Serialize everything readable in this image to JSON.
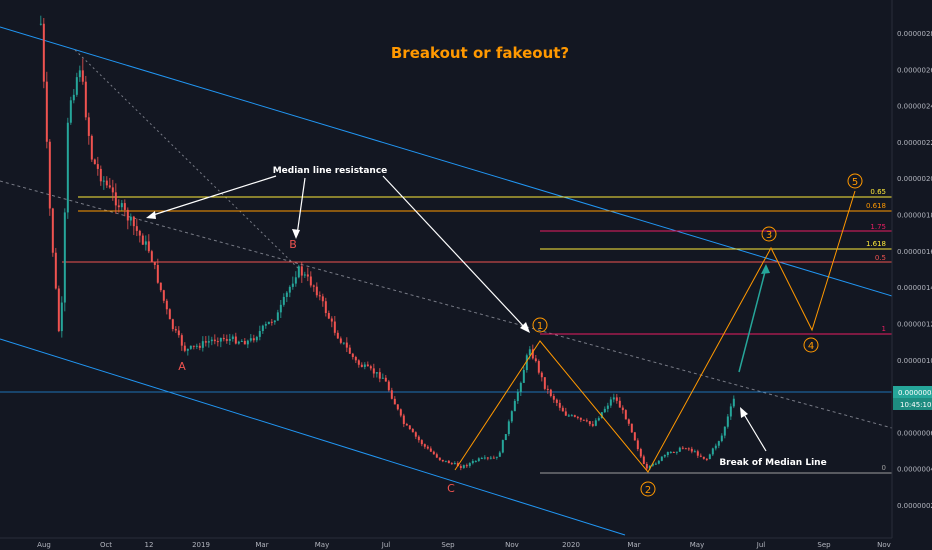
{
  "title": "Breakout or fakeout?",
  "colors": {
    "background": "#131722",
    "up": "#26a69a",
    "down": "#ef5350",
    "channel": "#2196f3",
    "wave": "#ff9800",
    "teal_arrow": "#26a69a"
  },
  "price_tag": {
    "value": "0.00000082",
    "timer": "10:45:10"
  },
  "chart_data": {
    "type": "candlestick",
    "title": "Breakout or fakeout?",
    "y_axis": {
      "range": [
        1e-07,
        2.9e-06
      ],
      "ticks": [
        "0.00000280",
        "0.00000260",
        "0.00000240",
        "0.00000220",
        "0.00000200",
        "0.00000180",
        "0.00000160",
        "0.00000140",
        "0.00000120",
        "0.00000100",
        "0.00000080",
        "0.00000060",
        "0.00000040",
        "0.00000020"
      ]
    },
    "x_axis": {
      "ticks": [
        "Aug",
        "Oct",
        "12",
        "2019",
        "Mar",
        "May",
        "Jul",
        "Sep",
        "Nov",
        "2020",
        "Mar",
        "May",
        "Jul",
        "Sep",
        "Nov"
      ]
    },
    "price_path": [
      {
        "date": "2018-08-01",
        "price": 2.85e-06
      },
      {
        "date": "2018-08-10",
        "price": 1.8e-06
      },
      {
        "date": "2018-08-20",
        "price": 1.05e-06
      },
      {
        "date": "2018-08-28",
        "price": 2.4e-06
      },
      {
        "date": "2018-09-08",
        "price": 2.62e-06
      },
      {
        "date": "2018-09-20",
        "price": 2.1e-06
      },
      {
        "date": "2018-10-05",
        "price": 1.95e-06
      },
      {
        "date": "2018-10-25",
        "price": 1.78e-06
      },
      {
        "date": "2018-11-15",
        "price": 1.6e-06
      },
      {
        "date": "2018-12-05",
        "price": 1.2e-06
      },
      {
        "date": "2018-12-20",
        "price": 1.05e-06
      },
      {
        "date": "2019-01-20",
        "price": 1.12e-06
      },
      {
        "date": "2019-02-20",
        "price": 1.1e-06
      },
      {
        "date": "2019-03-20",
        "price": 1.25e-06
      },
      {
        "date": "2019-04-08",
        "price": 1.5e-06
      },
      {
        "date": "2019-04-25",
        "price": 1.4e-06
      },
      {
        "date": "2019-05-15",
        "price": 1.15e-06
      },
      {
        "date": "2019-06-05",
        "price": 9.8e-07
      },
      {
        "date": "2019-07-01",
        "price": 9e-07
      },
      {
        "date": "2019-07-20",
        "price": 6.5e-07
      },
      {
        "date": "2019-08-10",
        "price": 5.2e-07
      },
      {
        "date": "2019-08-25",
        "price": 4.5e-07
      },
      {
        "date": "2019-09-15",
        "price": 4.1e-07
      },
      {
        "date": "2019-10-01",
        "price": 4.5e-07
      },
      {
        "date": "2019-10-20",
        "price": 4.6e-07
      },
      {
        "date": "2019-11-05",
        "price": 7.5e-07
      },
      {
        "date": "2019-11-20",
        "price": 1.07e-06
      },
      {
        "date": "2019-12-05",
        "price": 8.5e-07
      },
      {
        "date": "2019-12-25",
        "price": 7e-07
      },
      {
        "date": "2020-01-20",
        "price": 6.4e-07
      },
      {
        "date": "2020-02-10",
        "price": 8e-07
      },
      {
        "date": "2020-02-25",
        "price": 6.5e-07
      },
      {
        "date": "2020-03-12",
        "price": 3.9e-07
      },
      {
        "date": "2020-04-01",
        "price": 4.8e-07
      },
      {
        "date": "2020-04-20",
        "price": 5.2e-07
      },
      {
        "date": "2020-05-10",
        "price": 4.5e-07
      },
      {
        "date": "2020-05-25",
        "price": 5.8e-07
      },
      {
        "date": "2020-06-08",
        "price": 8.2e-07
      }
    ],
    "annotations": [
      {
        "text": "Median line resistance"
      },
      {
        "text": "Break of Median Line"
      },
      {
        "text": "A"
      },
      {
        "text": "B"
      },
      {
        "text": "C"
      }
    ],
    "wave_labels": [
      "1",
      "2",
      "3",
      "4",
      "5"
    ],
    "fib_labels": [
      {
        "text": "0.65",
        "color": "#ffeb3b",
        "price": 1.89e-06
      },
      {
        "text": "0.618",
        "color": "#ff9800",
        "price": 1.82e-06
      },
      {
        "text": "1.75",
        "color": "#e91e63",
        "price": 1.7e-06
      },
      {
        "text": "1.618",
        "color": "#ffeb3b",
        "price": 1.61e-06
      },
      {
        "text": "0.5",
        "color": "#ef5350",
        "price": 1.54e-06
      },
      {
        "text": "1",
        "color": "#e91e63",
        "price": 1.12e-06
      },
      {
        "text": "0",
        "color": "#9e9e9e",
        "price": 3.7e-07
      }
    ],
    "grid": false,
    "legend": "none"
  }
}
